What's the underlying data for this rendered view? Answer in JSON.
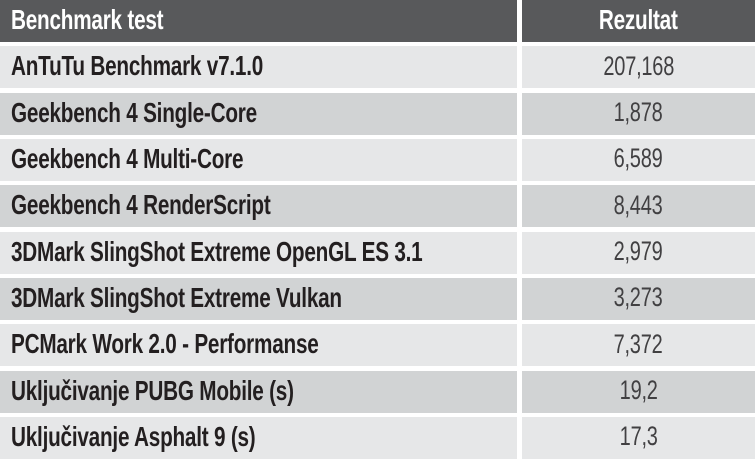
{
  "table": {
    "columns": [
      {
        "label": "Benchmark test"
      },
      {
        "label": "Rezultat"
      }
    ],
    "rows": [
      {
        "test": "AnTuTu Benchmark v7.1.0",
        "result": "207,168"
      },
      {
        "test": "Geekbench 4 Single-Core",
        "result": "1,878"
      },
      {
        "test": "Geekbench 4 Multi-Core",
        "result": "6,589"
      },
      {
        "test": "Geekbench 4 RenderScript",
        "result": "8,443"
      },
      {
        "test": "3DMark SlingShot Extreme OpenGL ES 3.1",
        "result": "2,979"
      },
      {
        "test": "3DMark SlingShot Extreme Vulkan",
        "result": "3,273"
      },
      {
        "test": "PCMark Work 2.0 - Performanse",
        "result": "7,372"
      },
      {
        "test": "Uključivanje PUBG Mobile (s)",
        "result": "19,2"
      },
      {
        "test": "Uključivanje Asphalt 9 (s)",
        "result": "17,3"
      }
    ]
  },
  "chart_data": {
    "type": "table",
    "title": "Benchmark test",
    "columns": [
      "Benchmark test",
      "Rezultat"
    ],
    "categories": [
      "AnTuTu Benchmark v7.1.0",
      "Geekbench 4 Single-Core",
      "Geekbench 4 Multi-Core",
      "Geekbench 4 RenderScript",
      "3DMark SlingShot Extreme OpenGL ES 3.1",
      "3DMark SlingShot Extreme Vulkan",
      "PCMark Work 2.0 - Performanse",
      "Uključivanje PUBG Mobile (s)",
      "Uključivanje Asphalt 9 (s)"
    ],
    "values": [
      207168,
      1878,
      6589,
      8443,
      2979,
      3273,
      7372,
      19.2,
      17.3
    ]
  },
  "colors": {
    "header_bg": "#58595b",
    "header_text": "#ffffff",
    "row_light_bg": "#e6e7e8",
    "row_dark_bg": "#d1d3d4",
    "label_text": "#231f20",
    "value_text": "#414042",
    "divider": "#ffffff"
  }
}
